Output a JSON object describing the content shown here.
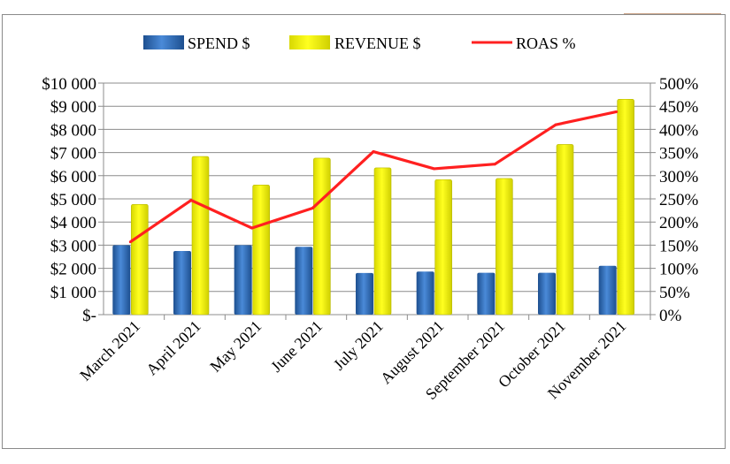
{
  "chart_data": {
    "type": "bar",
    "title": "",
    "categories": [
      "March 2021",
      "April 2021",
      "May 2021",
      "June 2021",
      "July 2021",
      "August 2021",
      "September 2021",
      "October 2021",
      "November 2021"
    ],
    "series": [
      {
        "name": "SPEND $",
        "type": "bar",
        "axis": "left",
        "color": "#2f6db5",
        "values": [
          3000,
          2750,
          3000,
          2930,
          1800,
          1860,
          1810,
          1810,
          2110
        ]
      },
      {
        "name": "REVENUE $",
        "type": "bar",
        "axis": "left",
        "color": "#ffff00",
        "values": [
          4760,
          6830,
          5600,
          6760,
          6340,
          5830,
          5880,
          7350,
          9300
        ]
      },
      {
        "name": "ROAS %",
        "type": "line",
        "axis": "right",
        "color": "#ff2020",
        "values": [
          157,
          247,
          187,
          230,
          352,
          315,
          325,
          410,
          438
        ]
      }
    ],
    "left_axis": {
      "ylim": [
        0,
        10000
      ],
      "tick_labels": [
        "$-",
        "$1 000",
        "$2 000",
        "$3 000",
        "$4 000",
        "$5 000",
        "$6 000",
        "$7 000",
        "$8 000",
        "$9 000",
        "$10 000"
      ]
    },
    "right_axis": {
      "ylim": [
        0,
        500
      ],
      "tick_labels": [
        "0%",
        "50%",
        "100%",
        "150%",
        "200%",
        "250%",
        "300%",
        "350%",
        "400%",
        "450%",
        "500%"
      ]
    },
    "grid": true,
    "legend": "top"
  }
}
